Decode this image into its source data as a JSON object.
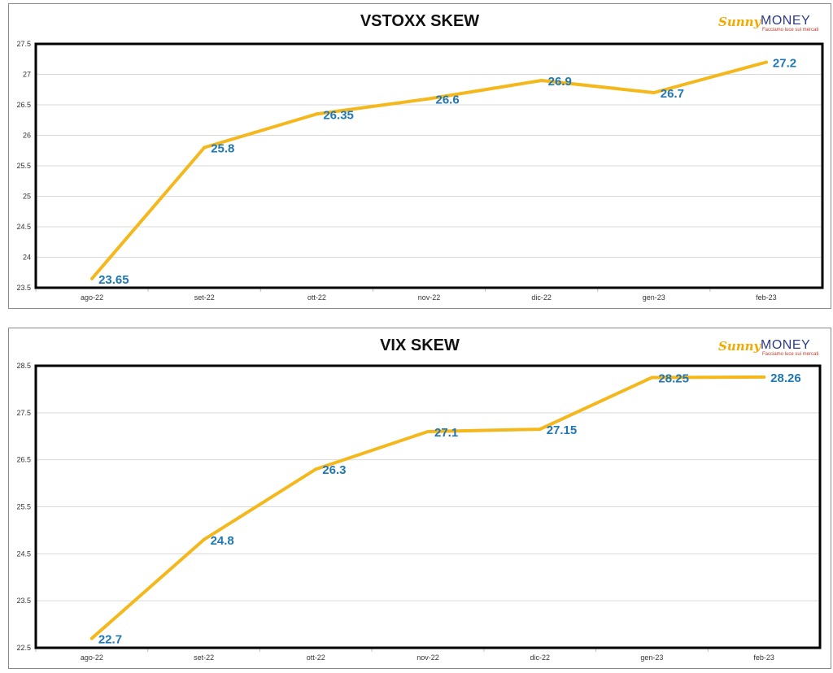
{
  "logo": {
    "brand_left": "Sunny",
    "brand_right": "MONEY",
    "tagline": "Facciamo luce sui mercati"
  },
  "chart_data": [
    {
      "type": "line",
      "title": "VSTOXX SKEW",
      "categories": [
        "ago-22",
        "set-22",
        "ott-22",
        "nov-22",
        "dic-22",
        "gen-23",
        "feb-23"
      ],
      "values": [
        23.65,
        25.8,
        26.35,
        26.6,
        26.9,
        26.7,
        27.2
      ],
      "data_labels": [
        "23.65",
        "25.8",
        "26.35",
        "26.6",
        "26.9",
        "26.7",
        "27.2"
      ],
      "ylim": [
        23.5,
        27.5
      ],
      "yticks": [
        "23.5",
        "24",
        "24.5",
        "25",
        "25.5",
        "26",
        "26.5",
        "27",
        "27.5"
      ],
      "grid": true,
      "line_color": "#f4b81c",
      "label_color": "#1f77b4"
    },
    {
      "type": "line",
      "title": "VIX SKEW",
      "categories": [
        "ago-22",
        "set-22",
        "ott-22",
        "nov-22",
        "dic-22",
        "gen-23",
        "feb-23"
      ],
      "values": [
        22.7,
        24.8,
        26.3,
        27.1,
        27.15,
        28.25,
        28.26
      ],
      "data_labels": [
        "22.7",
        "24.8",
        "26.3",
        "27.1",
        "27.15",
        "28.25",
        "28.26"
      ],
      "ylim": [
        22.5,
        28.5
      ],
      "yticks": [
        "22.5",
        "23.5",
        "24.5",
        "25.5",
        "26.5",
        "27.5",
        "28.5"
      ],
      "grid": true,
      "line_color": "#f4b81c",
      "label_color": "#1f77b4"
    }
  ]
}
